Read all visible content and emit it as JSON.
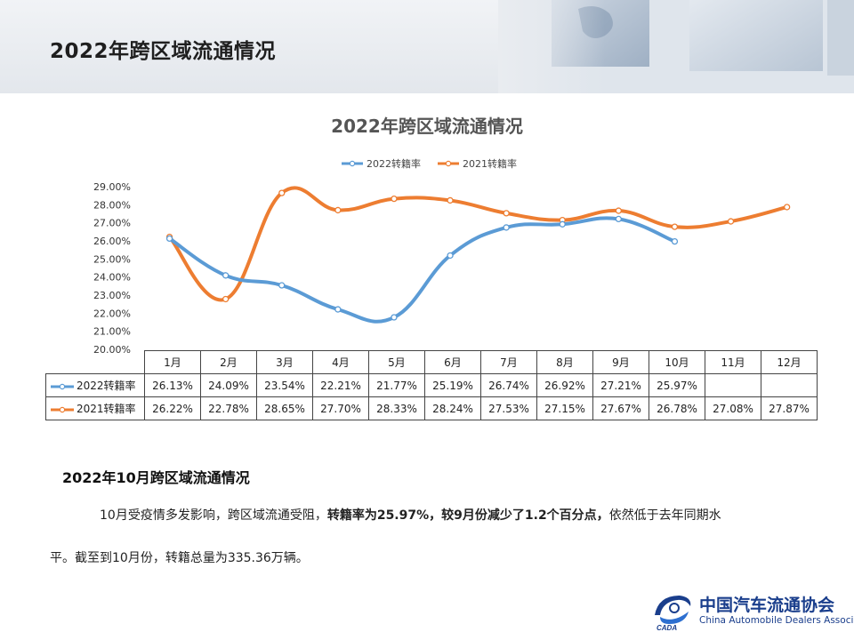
{
  "page": {
    "title": "2022年跨区域流通情况"
  },
  "chart_data": {
    "type": "line",
    "title": "2022年跨区域流通情况",
    "categories": [
      "1月",
      "2月",
      "3月",
      "4月",
      "5月",
      "6月",
      "7月",
      "8月",
      "9月",
      "10月",
      "11月",
      "12月"
    ],
    "series": [
      {
        "name": "2022转籍率",
        "color": "#5b9bd5",
        "values": [
          26.13,
          24.09,
          23.54,
          22.21,
          21.77,
          25.19,
          26.74,
          26.92,
          27.21,
          25.97,
          null,
          null
        ],
        "labels": [
          "26.13%",
          "24.09%",
          "23.54%",
          "22.21%",
          "21.77%",
          "25.19%",
          "26.74%",
          "26.92%",
          "27.21%",
          "25.97%",
          "",
          ""
        ]
      },
      {
        "name": "2021转籍率",
        "color": "#ed7d31",
        "values": [
          26.22,
          22.78,
          28.65,
          27.7,
          28.33,
          28.24,
          27.53,
          27.15,
          27.67,
          26.78,
          27.08,
          27.87
        ],
        "labels": [
          "26.22%",
          "22.78%",
          "28.65%",
          "27.70%",
          "28.33%",
          "28.24%",
          "27.53%",
          "27.15%",
          "27.67%",
          "26.78%",
          "27.08%",
          "27.87%"
        ]
      }
    ],
    "ylim": [
      20,
      29
    ],
    "yticks": [
      "20.00%",
      "21.00%",
      "22.00%",
      "23.00%",
      "24.00%",
      "25.00%",
      "26.00%",
      "27.00%",
      "28.00%",
      "29.00%"
    ],
    "legend_position": "top",
    "grid": false,
    "data_table": true
  },
  "summary": {
    "heading": "2022年10月跨区域流通情况",
    "para_part1": "10月受疫情多发影响，跨区域流通受阻，",
    "para_bold": "转籍率为25.97%，较9月份减少了1.2个百分点，",
    "para_part2": "依然低于去年同期水",
    "para_line2": "平。截至到10月份，转籍总量为335.36万辆。"
  },
  "logo": {
    "cn": "中国汽车流通协会",
    "en": "China Automobile Dealers Association",
    "mark_text": "CADA"
  }
}
